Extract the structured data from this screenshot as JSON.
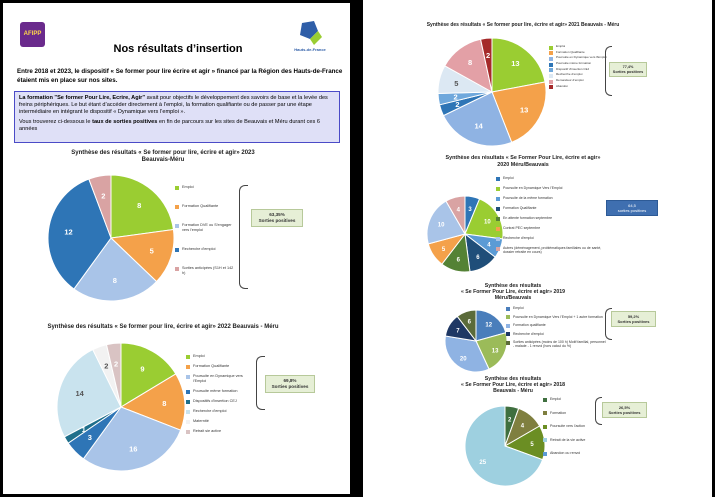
{
  "page1": {
    "logo_left": "AFIPP",
    "logo_right_text": "Hauts-de-France",
    "title": "Nos résultats d’insertion",
    "intro": "Entre 2018 et 2023, le dispositif « Se former pour lire écrire et agir » financé par la Région des Hauts-de-France étaient mis en place sur nos sites.",
    "box_p1_bold": "La formation \"Se former Pour Lire, Ecrire, Agir\"",
    "box_p1": " avait pour objectifs le développement des savoirs de base et la levée des freins périphériques.  Le but étant d’accéder directement à l’emploi, la formation qualifiante ou de passer par une étape intermédiaire en intégrant le dispositif « Dynamique vers l’emploi ».",
    "box_p2_a": "Vous trouverez ci-dessous le ",
    "box_p2_bold": "taux de sorties positives",
    "box_p2_b": " en fin de parcours sur les sites de Beauvais et Méru durant ces 6 années"
  },
  "chart_data": [
    {
      "type": "pie",
      "title": "Synthèse des résultats « Se former pour lire, écrire et agir» 2023 Beauvais-Méru",
      "categories": [
        "Emploi",
        "Formation Qualifiante",
        "Formation DVE ou S'engager vers l'emploi",
        "Recherche d'emploi",
        "Sorties anticipées (S1H et 142 h)"
      ],
      "values": [
        8,
        5,
        8,
        12,
        2
      ],
      "colors": [
        "#9ACD32",
        "#F4A14A",
        "#A9C4E8",
        "#2E75B6",
        "#D9A3A3"
      ],
      "annotation": "63,35% Sorties positives"
    },
    {
      "type": "pie",
      "title": "Synthèse des résultats « Se former pour lire, écrire et agir» 2022 Beauvais - Méru",
      "categories": [
        "Emploi",
        "Formation Qualifiante",
        "Poursuite en Dynamique vers l'Emploi",
        "Poursuite même formation",
        "Dispositifs d'insertion CEJ",
        "Recherche d'emploi",
        "Maternité",
        "Retrait sie active"
      ],
      "values": [
        9,
        8,
        16,
        3,
        1,
        14,
        2,
        2
      ],
      "colors": [
        "#9ACD32",
        "#F4A14A",
        "#A9C4E8",
        "#2E75B6",
        "#1F6F8B",
        "#C9E3EE",
        "#F2F2F2",
        "#D9C3C3"
      ],
      "annotation": "69,8% Sorties positives"
    },
    {
      "type": "pie",
      "title": "Synthèse des résultats « Se former pour lire, écrire et agir» 2021 Beauvais - Méru",
      "categories": [
        "Emploi",
        "Formation Qualifiante",
        "Poursuite en Dynamique vers l'Emploi",
        "Poursuite même formation",
        "Dispositif d'insertion CEJ",
        "Recherche d'emploi",
        "Demandeur d'emploi",
        "Abandon"
      ],
      "values": [
        13,
        13,
        14,
        2,
        2,
        5,
        8,
        2
      ],
      "colors": [
        "#9ACD32",
        "#F4A14A",
        "#8FB3E3",
        "#2E75B6",
        "#6FA8DC",
        "#DCE8F3",
        "#E3A0A6",
        "#A52A2A"
      ],
      "annotation": "77,4% Sorties positives"
    },
    {
      "type": "pie",
      "title": "Synthèse des résultats « Se Former Pour Lire, écrire et agir» 2020 Méru/Beauvais",
      "categories": [
        "Emploi",
        "Poursuite en Dynamique Vers l'Emploi",
        "Poursuite de la même formation",
        "Formation Qualifiante",
        "En attente formation septembre",
        "Contrat PEC septembre",
        "Recherche d'emploi",
        "Autres (déménagement, problématiques familiales ou de santé, dossier retraite en cours)"
      ],
      "values": [
        3,
        10,
        4,
        6,
        6,
        5,
        10,
        4
      ],
      "colors": [
        "#2E75B6",
        "#9ACD32",
        "#5B9BD5",
        "#1F4E79",
        "#548235",
        "#F4A14A",
        "#A9C4E8",
        "#D9A3A3"
      ],
      "annotation": "64,5 sorties positives"
    },
    {
      "type": "pie",
      "title": "Synthèse des résultats « Se Former Pour Lire, écrire et agir» 2019 Méru/Beauvais",
      "categories": [
        "Emploi",
        "Poursuite en Dynamique Vers l'Emploi + 1 autre formation",
        "Formation qualifiante",
        "Recherche d'emploi",
        "Sorties anticipées (moins de 100 h) Motif familial, personnel - malade - 1 renvoi (hors calcul du %)"
      ],
      "values": [
        12,
        13,
        20,
        7,
        6
      ],
      "colors": [
        "#4A7EBB",
        "#9BBB59",
        "#8FB3E3",
        "#1F3864",
        "#5B6B3A"
      ],
      "annotation": "59,2% Sorties positives"
    },
    {
      "type": "pie",
      "title": "Synthèse des résultats « Se Former Pour Lire, écrire et agir» 2018 Beauvais - Méru",
      "categories": [
        "Emploi",
        "Formation",
        "Poursuite vers l'action",
        "Retrait de la vie active",
        "Abandon ou renvoi"
      ],
      "values": [
        2,
        4,
        5,
        25,
        0
      ],
      "colors": [
        "#3F6F3F",
        "#7F7F3F",
        "#6B8E23",
        "#9ED0E0",
        "#5B9BD5"
      ],
      "annotation": "26,5% Sorties positives"
    }
  ],
  "charts_layout_labels": {
    "c2023": {
      "title1": "Synthèse des résultats « Se former pour lire, écrire et agir» 2023",
      "title2": "Beauvais-Méru",
      "stat1": "63,35%",
      "stat2": "Sorties positives"
    },
    "c2022": {
      "title1": "Synthèse des résultats « Se former pour lire, écrire et agir» 2022 Beauvais - Méru",
      "stat1": "69,8%",
      "stat2": "Sorties positives"
    },
    "c2021": {
      "title1": "Synthèse des résultats « Se former pour lire, écrire et agir» 2021 Beauvais - Méru",
      "stat1": "77,4%",
      "stat2": "Sorties positives"
    },
    "c2020": {
      "title1": "Synthèse des résultats « Se Former Pour Lire, écrire et agir»",
      "title2": "2020  Méru/Beauvais",
      "stat1": "64,5",
      "stat2": "sorties positives"
    },
    "c2019": {
      "title1": "Synthèse des résultats",
      "title2": "« Se Former Pour Lire, écrire et agir» 2019",
      "title3": "Méru/Beauvais",
      "stat1": "59,2%",
      "stat2": "Sorties positives"
    },
    "c2018": {
      "title1": "Synthèse des résultats",
      "title2": "« Se Former Pour Lire, écrire et agir» 2018",
      "title3": "Beauvais - Méru",
      "stat1": "26,5%",
      "stat2": "Sorties positives"
    }
  }
}
